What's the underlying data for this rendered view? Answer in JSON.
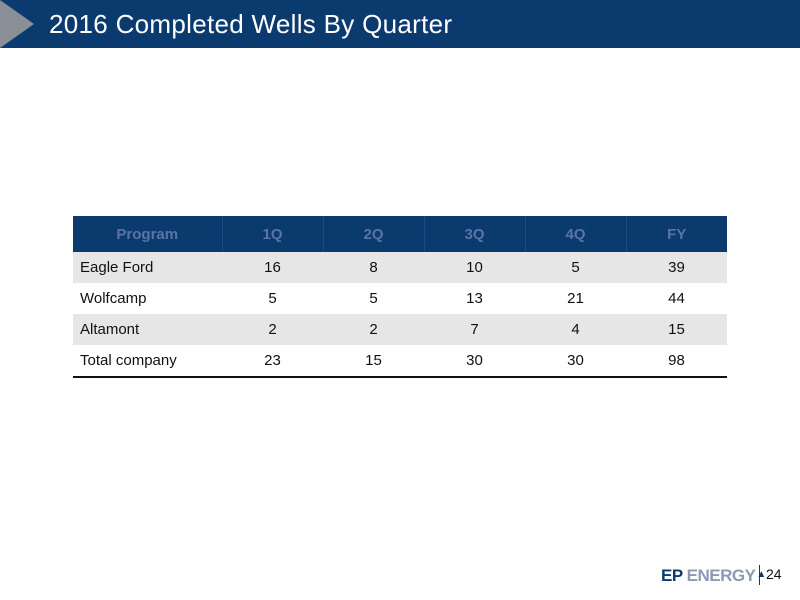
{
  "slide": {
    "title": "2016 Completed Wells By Quarter",
    "page_number": "24"
  },
  "table": {
    "headers": [
      "Program",
      "1Q",
      "2Q",
      "3Q",
      "4Q",
      "FY"
    ],
    "rows": [
      [
        "Eagle Ford",
        "16",
        "8",
        "10",
        "5",
        "39"
      ],
      [
        "Wolfcamp",
        "5",
        "5",
        "13",
        "21",
        "44"
      ],
      [
        "Altamont",
        "2",
        "2",
        "7",
        "4",
        "15"
      ],
      [
        "Total company",
        "23",
        "15",
        "30",
        "30",
        "98"
      ]
    ]
  },
  "logo": {
    "ep": "EP",
    "energy": "ENERGY",
    "mark": "▲"
  },
  "colors": {
    "brand_navy": "#0b3a6e",
    "arrow_gray": "#8a8f97",
    "row_shade": "#e6e6e6"
  }
}
